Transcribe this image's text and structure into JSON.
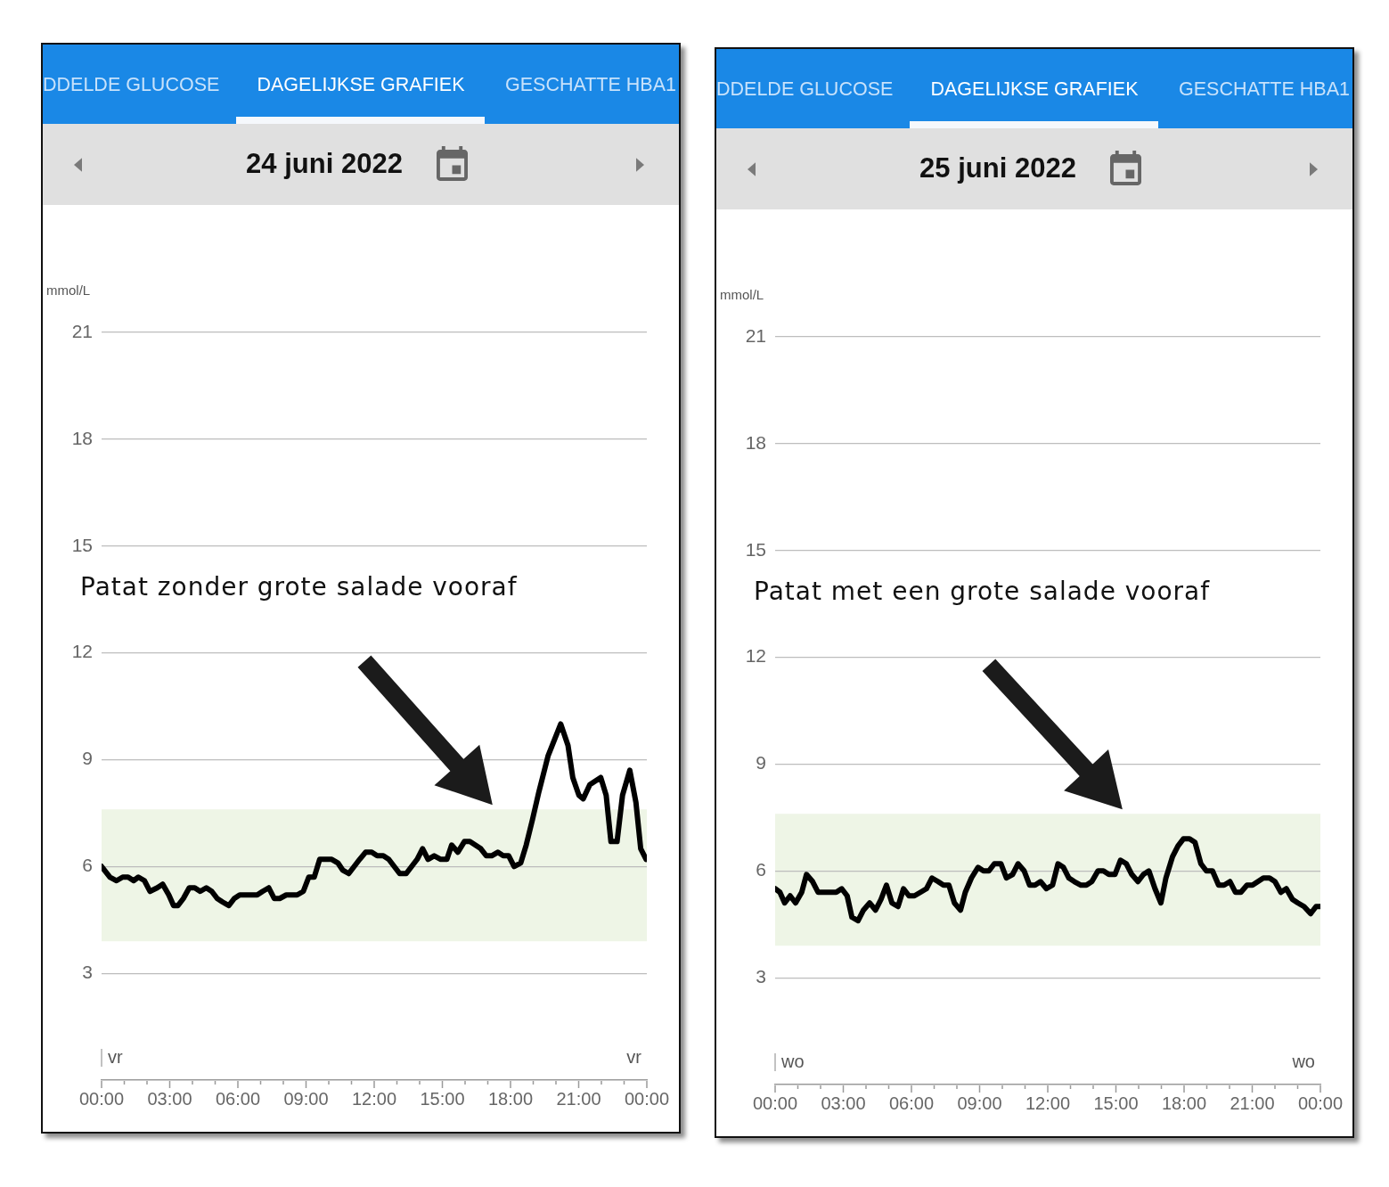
{
  "chart_data": [
    {
      "type": "line",
      "title": "24 juni 2022",
      "ylabel": "mmol/L",
      "annotations": [
        "DDELDE GLUCOSE",
        "DAGELIJKSE GRAFIEK",
        "GESCHATTE HBA1",
        "Patat zonder grote salade vooraf",
        "vr",
        "vr"
      ],
      "x": [
        0,
        0.37,
        0.66,
        0.93,
        1.17,
        1.41,
        1.62,
        1.89,
        2.13,
        2.45,
        2.69,
        2.96,
        3.17,
        3.36,
        3.6,
        3.86,
        4.1,
        4.34,
        4.61,
        4.85,
        5.09,
        5.33,
        5.6,
        5.84,
        6.08,
        6.34,
        6.61,
        6.85,
        7.09,
        7.36,
        7.6,
        7.84,
        8.13,
        8.37,
        8.61,
        8.88,
        9.12,
        9.36,
        9.6,
        9.89,
        10.13,
        10.4,
        10.61,
        10.88,
        11.12,
        11.36,
        11.62,
        11.89,
        12.13,
        12.4,
        12.64,
        12.88,
        13.12,
        13.41,
        13.65,
        13.89,
        14.13,
        14.37,
        14.64,
        14.93,
        15.2,
        15.41,
        15.68,
        15.97,
        16.21,
        16.45,
        16.69,
        16.93,
        17.17,
        17.44,
        17.68,
        17.92,
        18.16,
        18.45,
        18.69,
        18.96,
        19.25,
        19.65,
        20.21,
        20.53,
        20.74,
        21.01,
        21.2,
        21.49,
        21.73,
        21.97,
        22.21,
        22.42,
        22.69,
        22.93,
        23.25,
        23.52,
        23.73,
        23.97
      ],
      "values": [
        6.0,
        5.7,
        5.6,
        5.7,
        5.7,
        5.6,
        5.7,
        5.6,
        5.3,
        5.4,
        5.5,
        5.2,
        4.9,
        4.9,
        5.1,
        5.4,
        5.4,
        5.3,
        5.4,
        5.3,
        5.1,
        5.0,
        4.9,
        5.1,
        5.2,
        5.2,
        5.2,
        5.2,
        5.3,
        5.4,
        5.1,
        5.1,
        5.2,
        5.2,
        5.2,
        5.3,
        5.7,
        5.7,
        6.2,
        6.2,
        6.2,
        6.1,
        5.9,
        5.8,
        6.0,
        6.2,
        6.4,
        6.4,
        6.3,
        6.3,
        6.2,
        6.0,
        5.8,
        5.8,
        6.0,
        6.2,
        6.5,
        6.2,
        6.3,
        6.2,
        6.2,
        6.6,
        6.4,
        6.7,
        6.7,
        6.6,
        6.5,
        6.3,
        6.3,
        6.4,
        6.3,
        6.3,
        6.0,
        6.1,
        6.6,
        7.3,
        8.1,
        9.1,
        10.0,
        9.4,
        8.5,
        8.0,
        7.9,
        8.3,
        8.4,
        8.5,
        8.0,
        6.7,
        6.7,
        8.0,
        8.7,
        7.8,
        6.5,
        6.2
      ],
      "color": "#000000",
      "bands": [
        {
          "axis": "y",
          "from": 3.9,
          "to": 7.6,
          "color": "#eef5e6"
        }
      ],
      "xlim": [
        0,
        24
      ],
      "xticks": [
        {
          "value": 0,
          "label": "00:00"
        },
        {
          "value": 1,
          "label": null
        },
        {
          "value": 2,
          "label": null
        },
        {
          "value": 3,
          "label": "03:00"
        },
        {
          "value": 4,
          "label": null
        },
        {
          "value": 5,
          "label": null
        },
        {
          "value": 6,
          "label": "06:00"
        },
        {
          "value": 7,
          "label": null
        },
        {
          "value": 8,
          "label": null
        },
        {
          "value": 9,
          "label": "09:00"
        },
        {
          "value": 10,
          "label": null
        },
        {
          "value": 11,
          "label": null
        },
        {
          "value": 12,
          "label": "12:00"
        },
        {
          "value": 13,
          "label": null
        },
        {
          "value": 14,
          "label": null
        },
        {
          "value": 15,
          "label": "15:00"
        },
        {
          "value": 16,
          "label": null
        },
        {
          "value": 17,
          "label": null
        },
        {
          "value": 18,
          "label": "18:00"
        },
        {
          "value": 19,
          "label": null
        },
        {
          "value": 20,
          "label": null
        },
        {
          "value": 21,
          "label": "21:00"
        },
        {
          "value": 22,
          "label": null
        },
        {
          "value": 23,
          "label": null
        },
        {
          "value": 24,
          "label": "00:00"
        }
      ],
      "ylim": [
        0,
        21
      ],
      "yticks": [
        3,
        6,
        9,
        12,
        15,
        18,
        21
      ],
      "grid": "y"
    },
    {
      "type": "line",
      "title": "25 juni 2022",
      "ylabel": "mmol/L",
      "annotations": [
        "DDELDE GLUCOSE",
        "DAGELIJKSE GRAFIEK",
        "GESCHATTE HBA1",
        "Patat met een grote salade vooraf",
        "wo",
        "wo"
      ],
      "x": [
        0,
        0.21,
        0.42,
        0.66,
        0.9,
        1.17,
        1.38,
        1.65,
        1.89,
        2.18,
        2.45,
        2.69,
        2.93,
        3.17,
        3.38,
        3.65,
        3.89,
        4.16,
        4.42,
        4.66,
        4.9,
        5.14,
        5.41,
        5.65,
        5.89,
        6.13,
        6.4,
        6.66,
        6.9,
        7.17,
        7.41,
        7.65,
        7.89,
        8.16,
        8.37,
        8.64,
        8.93,
        9.17,
        9.41,
        9.65,
        9.94,
        10.18,
        10.45,
        10.69,
        10.96,
        11.2,
        11.44,
        11.68,
        11.94,
        12.21,
        12.45,
        12.69,
        12.93,
        13.17,
        13.46,
        13.7,
        13.94,
        14.21,
        14.45,
        14.69,
        14.96,
        15.2,
        15.46,
        15.7,
        15.97,
        16.21,
        16.45,
        16.72,
        16.98,
        17.2,
        17.49,
        17.73,
        17.97,
        18.24,
        18.48,
        18.74,
        18.98,
        19.25,
        19.52,
        19.76,
        20.02,
        20.26,
        20.5,
        20.77,
        21.01,
        21.25,
        21.49,
        21.76,
        22.0,
        22.26,
        22.5,
        22.77,
        23.01,
        23.28,
        23.57,
        23.81,
        23.97
      ],
      "values": [
        5.5,
        5.4,
        5.1,
        5.3,
        5.1,
        5.4,
        5.9,
        5.7,
        5.4,
        5.4,
        5.4,
        5.4,
        5.5,
        5.3,
        4.7,
        4.6,
        4.9,
        5.1,
        4.9,
        5.2,
        5.6,
        5.1,
        5.0,
        5.5,
        5.3,
        5.3,
        5.4,
        5.5,
        5.8,
        5.7,
        5.6,
        5.6,
        5.1,
        4.9,
        5.4,
        5.8,
        6.1,
        6.0,
        6.0,
        6.2,
        6.2,
        5.8,
        5.9,
        6.2,
        6.0,
        5.6,
        5.6,
        5.7,
        5.5,
        5.6,
        6.2,
        6.1,
        5.8,
        5.7,
        5.6,
        5.6,
        5.7,
        6.0,
        6.0,
        5.9,
        5.9,
        6.3,
        6.2,
        5.9,
        5.7,
        5.9,
        6.0,
        5.5,
        5.1,
        5.8,
        6.4,
        6.7,
        6.9,
        6.9,
        6.8,
        6.2,
        6.0,
        6.0,
        5.6,
        5.6,
        5.7,
        5.4,
        5.4,
        5.6,
        5.6,
        5.7,
        5.8,
        5.8,
        5.7,
        5.4,
        5.5,
        5.2,
        5.1,
        5.0,
        4.8,
        5.0,
        5.0
      ],
      "color": "#000000",
      "bands": [
        {
          "axis": "y",
          "from": 3.9,
          "to": 7.6,
          "color": "#eef5e6"
        }
      ],
      "xlim": [
        0,
        24
      ],
      "xticks": [
        {
          "value": 0,
          "label": "00:00"
        },
        {
          "value": 1,
          "label": null
        },
        {
          "value": 2,
          "label": null
        },
        {
          "value": 3,
          "label": "03:00"
        },
        {
          "value": 4,
          "label": null
        },
        {
          "value": 5,
          "label": null
        },
        {
          "value": 6,
          "label": "06:00"
        },
        {
          "value": 7,
          "label": null
        },
        {
          "value": 8,
          "label": null
        },
        {
          "value": 9,
          "label": "09:00"
        },
        {
          "value": 10,
          "label": null
        },
        {
          "value": 11,
          "label": null
        },
        {
          "value": 12,
          "label": "12:00"
        },
        {
          "value": 13,
          "label": null
        },
        {
          "value": 14,
          "label": null
        },
        {
          "value": 15,
          "label": "15:00"
        },
        {
          "value": 16,
          "label": null
        },
        {
          "value": 17,
          "label": null
        },
        {
          "value": 18,
          "label": "18:00"
        },
        {
          "value": 19,
          "label": null
        },
        {
          "value": 20,
          "label": null
        },
        {
          "value": 21,
          "label": "21:00"
        },
        {
          "value": 22,
          "label": null
        },
        {
          "value": 23,
          "label": null
        },
        {
          "value": 24,
          "label": "00:00"
        }
      ],
      "ylim": [
        0,
        21
      ],
      "yticks": [
        3,
        6,
        9,
        12,
        15,
        18,
        21
      ],
      "grid": "y"
    }
  ]
}
